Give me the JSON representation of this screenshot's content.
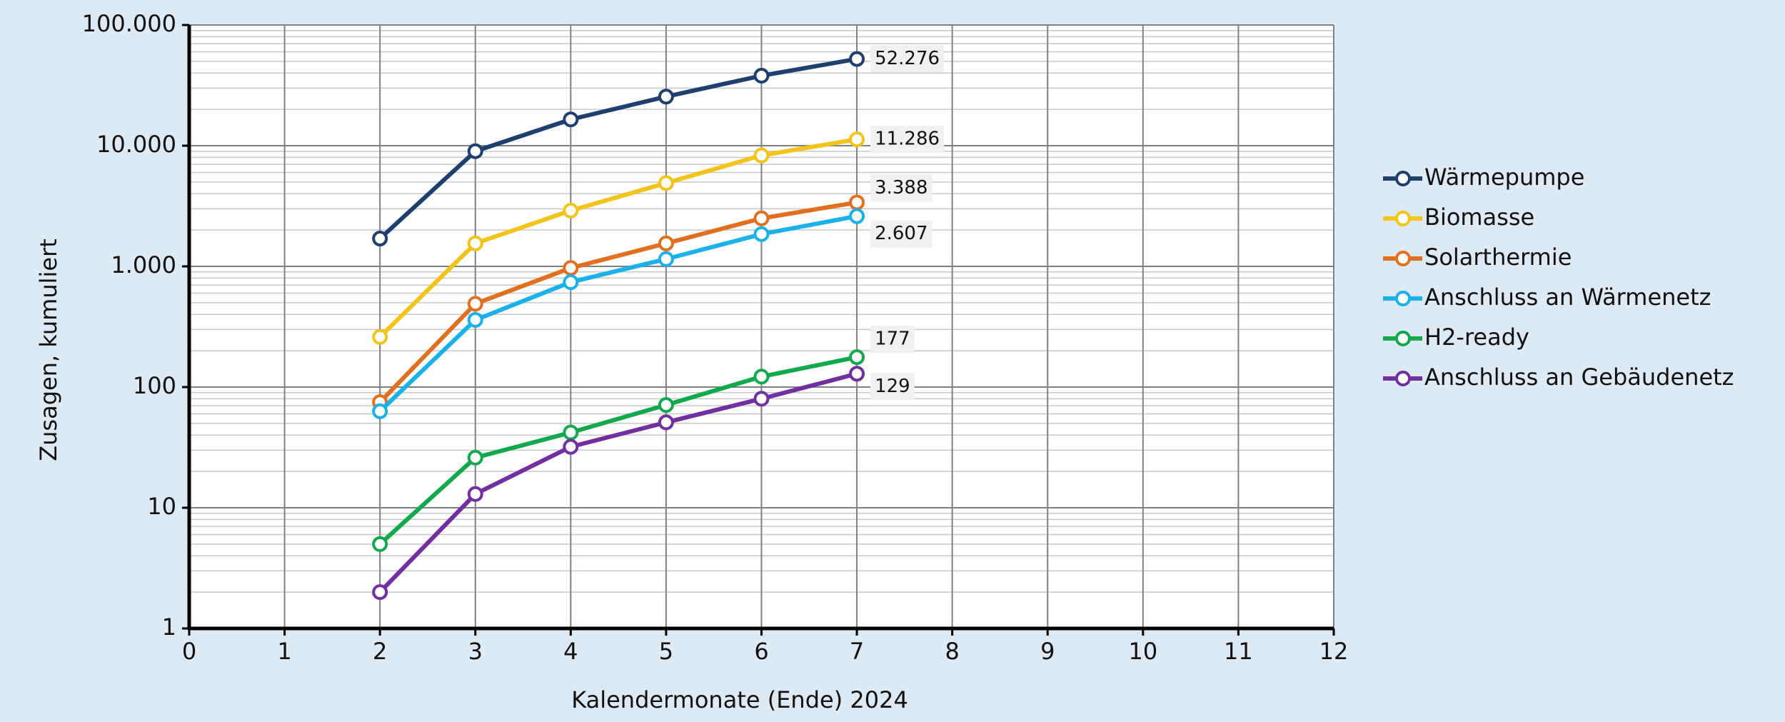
{
  "chart_data": {
    "type": "line",
    "x_label": "Kalendermonate (Ende) 2024",
    "y_label": "Zusagen, kumuliert",
    "x": [
      2,
      3,
      4,
      5,
      6,
      7
    ],
    "xlim": [
      0,
      12
    ],
    "xticks": [
      0,
      1,
      2,
      3,
      4,
      5,
      6,
      7,
      8,
      9,
      10,
      11,
      12
    ],
    "ylim": [
      1,
      100000
    ],
    "log_y": true,
    "yticks": [
      1,
      10,
      100,
      {
        "value": 1000,
        "label": "1.000"
      },
      {
        "value": 10000,
        "label": "10.000"
      },
      {
        "value": 100000,
        "label": "100.000"
      }
    ],
    "grid": true,
    "legend": "right",
    "data_labels": "last",
    "series": [
      {
        "name": "Wärmepumpe",
        "color": "#1f3f6e",
        "values": [
          1700,
          9000,
          16500,
          25500,
          38000,
          52276
        ],
        "value_labels": [
          null,
          null,
          null,
          null,
          null,
          "52.276"
        ]
      },
      {
        "name": "Biomasse",
        "color": "#f2c318",
        "values": [
          260,
          1550,
          2900,
          4900,
          8300,
          11286
        ],
        "value_labels": [
          null,
          null,
          null,
          null,
          null,
          "11.286"
        ]
      },
      {
        "name": "Solarthermie",
        "color": "#e07020",
        "values": [
          75,
          490,
          970,
          1550,
          2500,
          3388
        ],
        "value_labels": [
          null,
          null,
          null,
          null,
          null,
          "3.388"
        ]
      },
      {
        "name": "Anschluss an Wärmenetz",
        "color": "#1ab0e8",
        "values": [
          63,
          360,
          740,
          1150,
          1850,
          2607
        ],
        "value_labels": [
          null,
          null,
          null,
          null,
          null,
          "2.607"
        ]
      },
      {
        "name": "H2-ready",
        "color": "#12a84e",
        "values": [
          5,
          26,
          42,
          71,
          122,
          177
        ]
      },
      {
        "name": "Anschluss an Gebäudenetz",
        "color": "#7030a0",
        "values": [
          2,
          13,
          32,
          51,
          80,
          129
        ]
      }
    ]
  }
}
